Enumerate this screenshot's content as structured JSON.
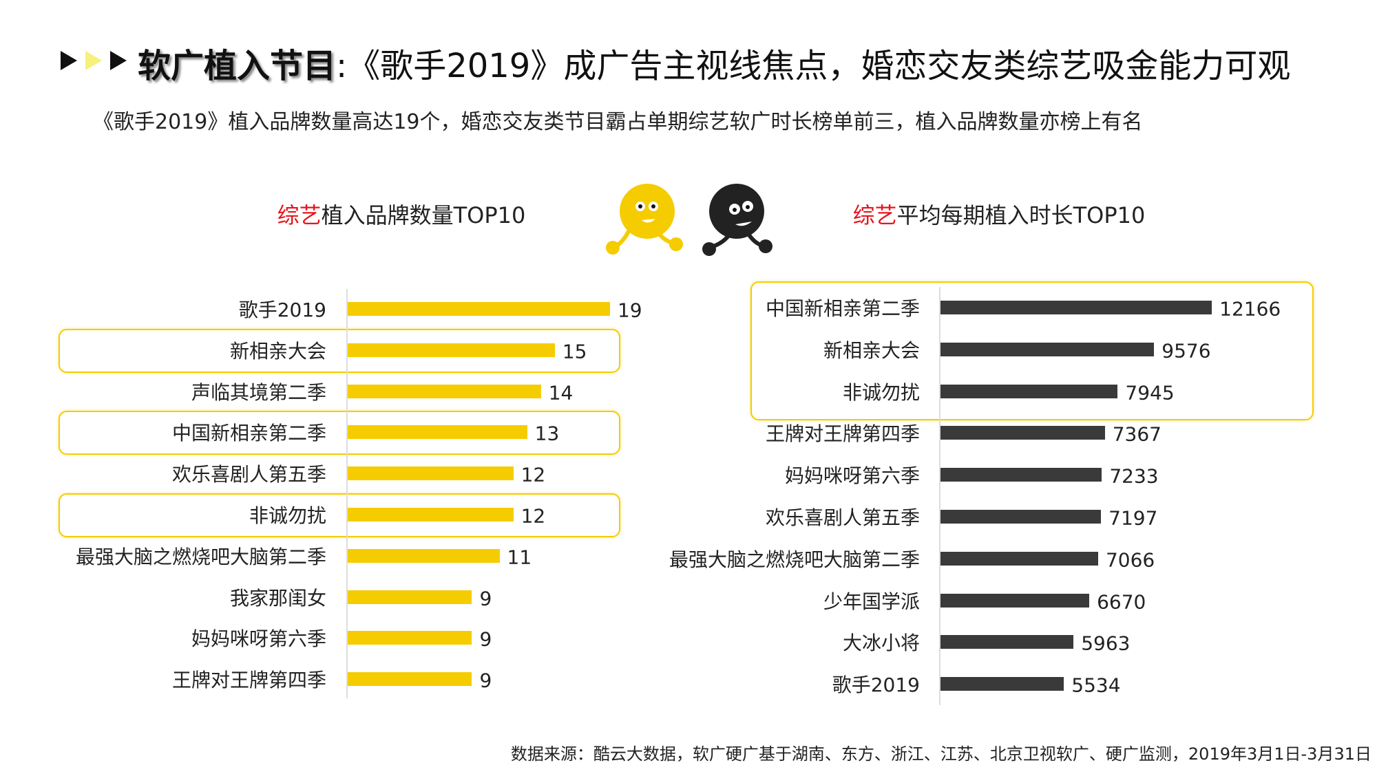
{
  "header": {
    "title_bold": "软广植入节目",
    "title_rest": ":《歌手2019》成广告主视线焦点，婚恋交友类综艺吸金能力可观",
    "subtitle": "《歌手2019》植入品牌数量高达19个，婚恋交友类节目霸占单期综艺软广时长榜单前三，植入品牌数量亦榜上有名"
  },
  "colors": {
    "accent": "#f5cc00",
    "bar_left": "#f5cc00",
    "bar_right": "#3a3a3a",
    "highlight": "#e8141b"
  },
  "chart_data": [
    {
      "type": "bar",
      "orientation": "horizontal",
      "title_highlight": "综艺",
      "title_rest": "植入品牌数量TOP10",
      "categories": [
        "歌手2019",
        "新相亲大会",
        "声临其境第二季",
        "中国新相亲第二季",
        "欢乐喜剧人第五季",
        "非诚勿扰",
        "最强大脑之燃烧吧大脑第二季",
        "我家那闺女",
        "妈妈咪呀第六季",
        "王牌对王牌第四季"
      ],
      "values": [
        19,
        15,
        14,
        13,
        12,
        12,
        11,
        9,
        9,
        9
      ],
      "highlighted": [
        1,
        3,
        5
      ]
    },
    {
      "type": "bar",
      "orientation": "horizontal",
      "title_highlight": "综艺",
      "title_rest": "平均每期植入时长TOP10",
      "categories": [
        "中国新相亲第二季",
        "新相亲大会",
        "非诚勿扰",
        "王牌对王牌第四季",
        "妈妈咪呀第六季",
        "欢乐喜剧人第五季",
        "最强大脑之燃烧吧大脑第二季",
        "少年国学派",
        "大冰小将",
        "歌手2019"
      ],
      "values": [
        12166,
        9576,
        7945,
        7367,
        7233,
        7197,
        7066,
        6670,
        5963,
        5534
      ],
      "highlighted": [
        0,
        1,
        2
      ]
    }
  ],
  "footer": "数据来源：酷云大数据，软广硬广基于湖南、东方、浙江、江苏、北京卫视软广、硬广监测，2019年3月1日-3月31日"
}
